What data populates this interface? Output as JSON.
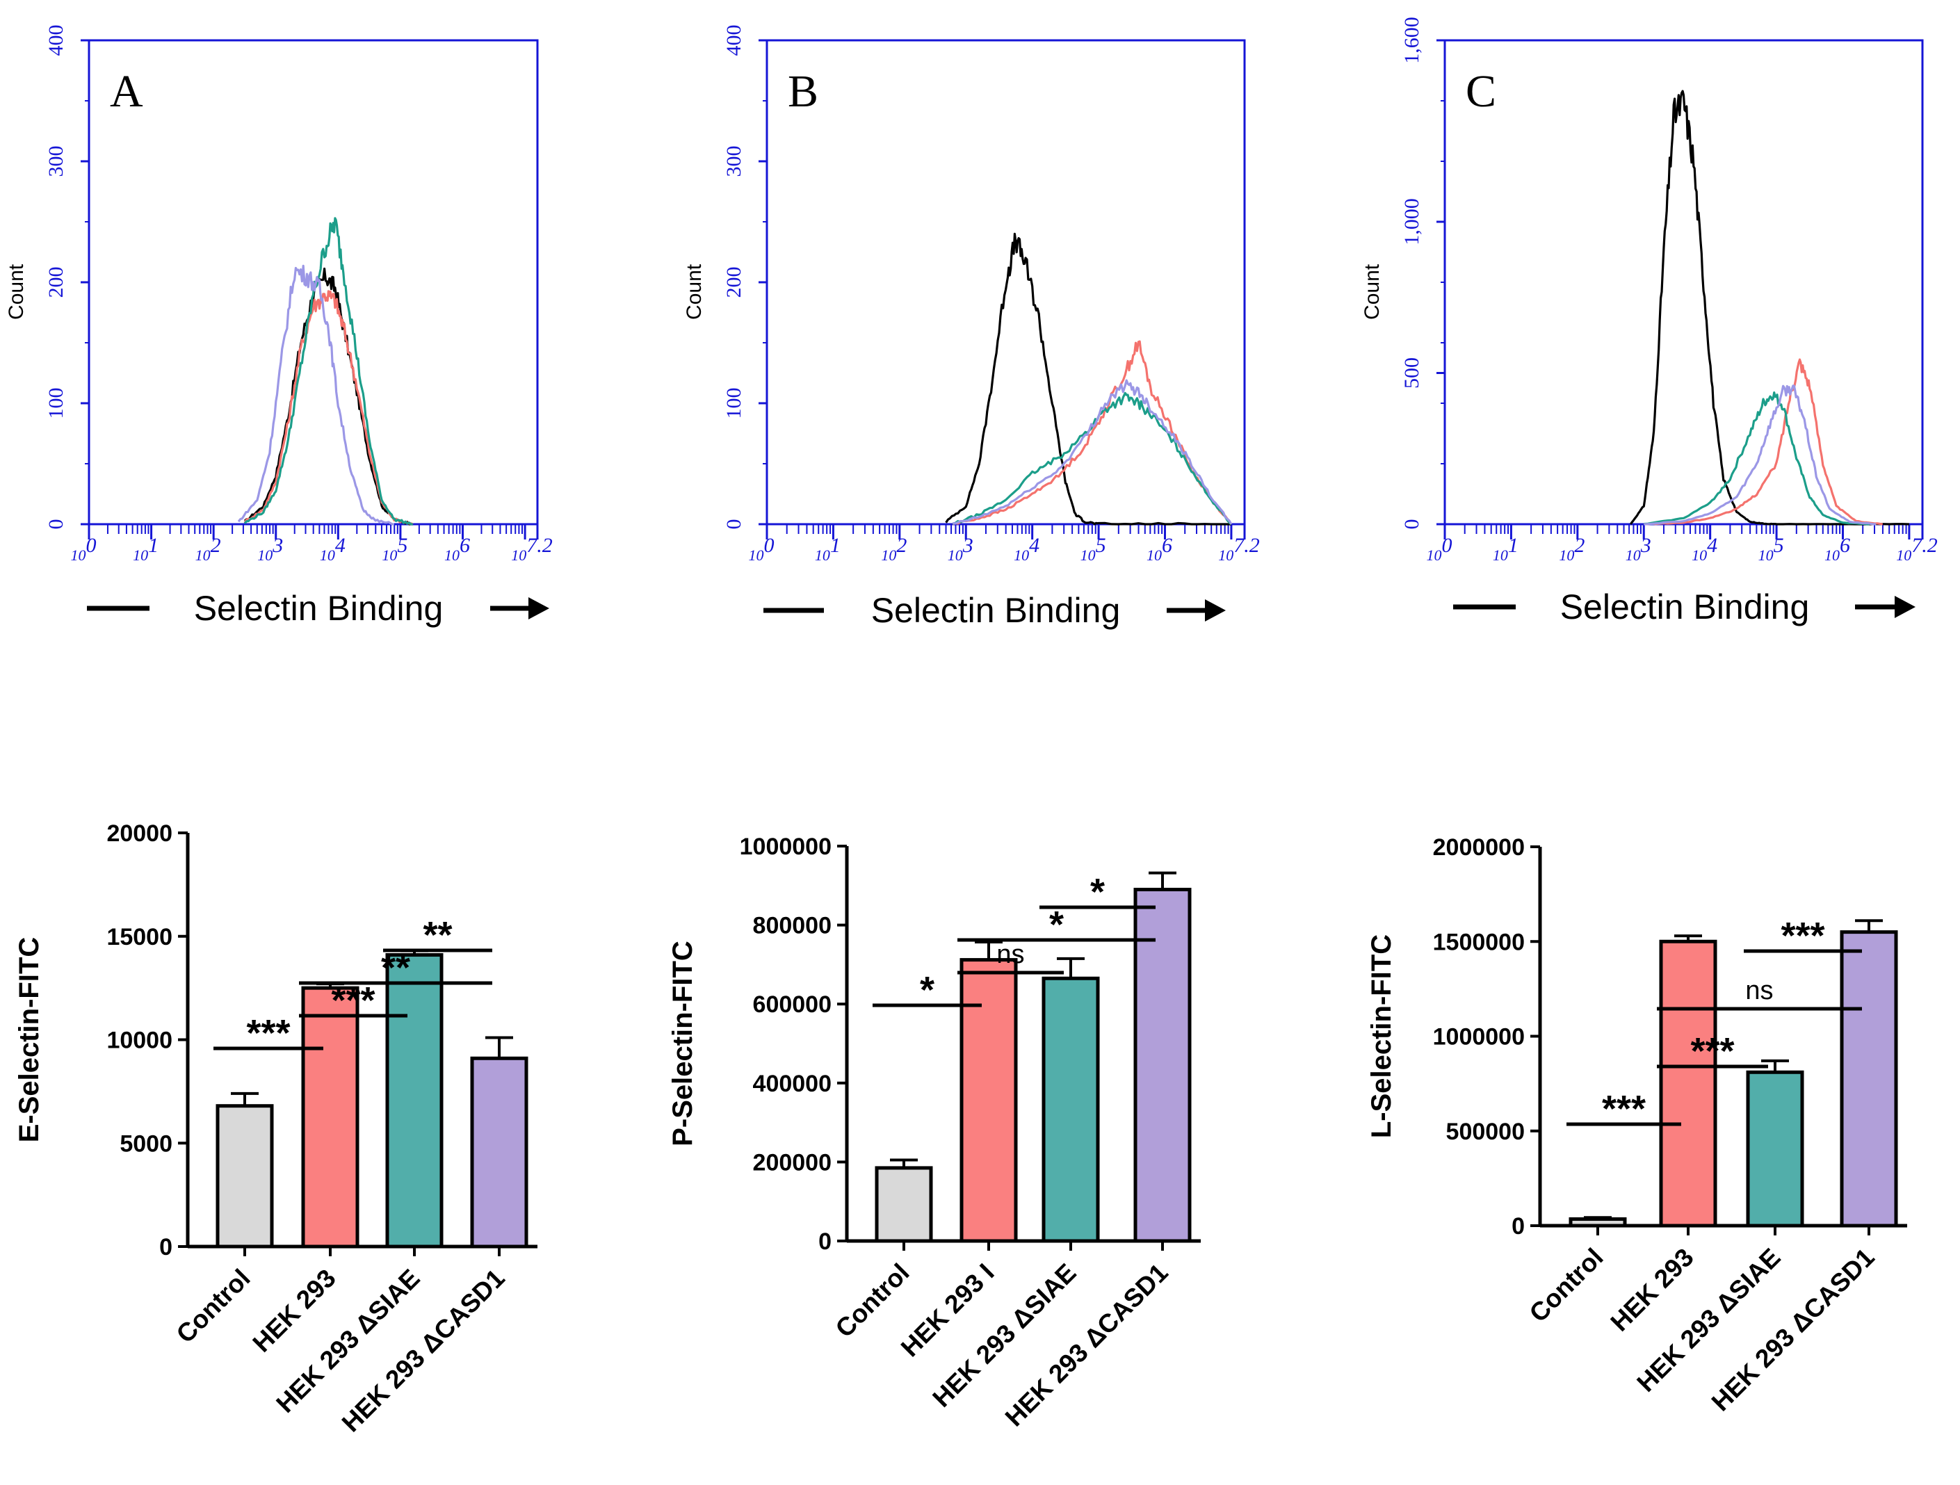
{
  "figure": {
    "colors": {
      "hist_axis": "#1515d6",
      "control": "#000000",
      "hek293": "#f4726d",
      "siae": "#1c9e8a",
      "casd1": "#9b97e6",
      "bar_control": "#d9d9d9",
      "bar_hek293": "#fa8080",
      "bar_siae": "#52aeaa",
      "bar_casd1": "#b19fd9"
    }
  },
  "chart_data": [
    {
      "type": "line",
      "id": "hist-A",
      "panel_letter": "A",
      "ylabel": "Count",
      "xlabel": "Selectin Binding",
      "xscale": "log10",
      "xlim": [
        0,
        7.2
      ],
      "ylim": [
        0,
        400
      ],
      "yticks": [
        "0",
        "100",
        "200",
        "300",
        "400"
      ],
      "xtick_labels": [
        "10",
        "10",
        "10",
        "10",
        "10",
        "10",
        "10",
        "10"
      ],
      "xtick_exponents": [
        "0",
        "1",
        "2",
        "3",
        "4",
        "5",
        "6",
        "7.2"
      ],
      "series": [
        {
          "name": "Control",
          "color_key": "control",
          "x": [
            2.5,
            2.8,
            3.0,
            3.2,
            3.4,
            3.6,
            3.8,
            3.95,
            4.1,
            4.3,
            4.5,
            4.7,
            4.9,
            5.2
          ],
          "y": [
            2,
            15,
            40,
            90,
            150,
            190,
            205,
            195,
            160,
            110,
            55,
            15,
            4,
            0
          ]
        },
        {
          "name": "HEK 293",
          "color_key": "hek293",
          "x": [
            2.5,
            2.8,
            3.0,
            3.2,
            3.4,
            3.6,
            3.8,
            3.95,
            4.1,
            4.3,
            4.5,
            4.7,
            4.9,
            5.2
          ],
          "y": [
            2,
            12,
            35,
            85,
            145,
            180,
            190,
            185,
            160,
            115,
            60,
            18,
            4,
            0
          ]
        },
        {
          "name": "HEK 293 ΔSIAE",
          "color_key": "siae",
          "x": [
            2.5,
            2.8,
            3.0,
            3.2,
            3.4,
            3.6,
            3.8,
            3.95,
            4.1,
            4.3,
            4.5,
            4.7,
            4.9,
            5.2
          ],
          "y": [
            1,
            10,
            28,
            70,
            130,
            190,
            230,
            250,
            205,
            140,
            70,
            20,
            4,
            0
          ]
        },
        {
          "name": "HEK 293 ΔCASD1",
          "color_key": "casd1",
          "x": [
            2.4,
            2.7,
            2.9,
            3.1,
            3.3,
            3.5,
            3.7,
            3.85,
            4.0,
            4.2,
            4.4,
            4.6,
            4.9
          ],
          "y": [
            2,
            20,
            60,
            140,
            210,
            205,
            195,
            160,
            100,
            45,
            12,
            3,
            0
          ]
        }
      ]
    },
    {
      "type": "line",
      "id": "hist-B",
      "panel_letter": "B",
      "ylabel": "Count",
      "xlabel": "Selectin Binding",
      "xscale": "log10",
      "xlim": [
        0,
        7.2
      ],
      "ylim": [
        0,
        400
      ],
      "yticks": [
        "0",
        "100",
        "200",
        "300",
        "400"
      ],
      "xtick_labels": [
        "10",
        "10",
        "10",
        "10",
        "10",
        "10",
        "10",
        "10"
      ],
      "xtick_exponents": [
        "0",
        "1",
        "2",
        "3",
        "4",
        "5",
        "6",
        "7.2"
      ],
      "series": [
        {
          "name": "Control",
          "color_key": "control",
          "x": [
            2.7,
            3.0,
            3.2,
            3.4,
            3.6,
            3.75,
            3.9,
            4.1,
            4.3,
            4.5,
            4.65,
            4.8,
            5.0,
            6.0,
            7.0
          ],
          "y": [
            2,
            15,
            50,
            120,
            200,
            235,
            215,
            170,
            100,
            35,
            8,
            2,
            0,
            0,
            0
          ]
        },
        {
          "name": "HEK 293",
          "color_key": "hek293",
          "x": [
            2.8,
            3.2,
            3.6,
            4.0,
            4.4,
            4.8,
            5.1,
            5.4,
            5.6,
            5.8,
            6.1,
            6.4,
            6.7,
            7.0
          ],
          "y": [
            0,
            5,
            12,
            25,
            40,
            65,
            95,
            125,
            150,
            110,
            80,
            45,
            20,
            0
          ]
        },
        {
          "name": "HEK 293 ΔSIAE",
          "color_key": "siae",
          "x": [
            2.8,
            3.2,
            3.6,
            4.0,
            4.4,
            4.8,
            5.1,
            5.4,
            5.6,
            5.8,
            6.1,
            6.4,
            6.7,
            7.0
          ],
          "y": [
            0,
            8,
            20,
            42,
            55,
            75,
            95,
            105,
            100,
            90,
            70,
            45,
            20,
            0
          ]
        },
        {
          "name": "HEK 293 ΔCASD1",
          "color_key": "casd1",
          "x": [
            2.8,
            3.2,
            3.6,
            4.0,
            4.4,
            4.8,
            5.1,
            5.4,
            5.6,
            5.8,
            6.1,
            6.4,
            6.7,
            7.0
          ],
          "y": [
            0,
            6,
            15,
            30,
            45,
            72,
            100,
            115,
            110,
            95,
            75,
            50,
            22,
            0
          ]
        }
      ]
    },
    {
      "type": "line",
      "id": "hist-C",
      "panel_letter": "C",
      "ylabel": "Count",
      "xlabel": "Selectin Binding",
      "xscale": "log10",
      "xlim": [
        0,
        7.2
      ],
      "ylim": [
        0,
        1600
      ],
      "yticks": [
        "0",
        "500",
        "1,000",
        "1,600"
      ],
      "ytick_values": [
        0,
        500,
        1000,
        1600
      ],
      "xtick_labels": [
        "10",
        "10",
        "10",
        "10",
        "10",
        "10",
        "10",
        "10"
      ],
      "xtick_exponents": [
        "0",
        "1",
        "2",
        "3",
        "4",
        "5",
        "6",
        "7.2"
      ],
      "series": [
        {
          "name": "Control",
          "color_key": "control",
          "x": [
            2.8,
            3.0,
            3.15,
            3.3,
            3.45,
            3.6,
            3.75,
            3.9,
            4.05,
            4.2,
            4.4,
            4.6,
            4.8,
            5.0,
            6.0,
            7.0
          ],
          "y": [
            0,
            60,
            300,
            900,
            1350,
            1400,
            1200,
            800,
            400,
            150,
            40,
            8,
            2,
            0,
            0,
            0
          ]
        },
        {
          "name": "HEK 293",
          "color_key": "hek293",
          "x": [
            3.0,
            3.6,
            4.0,
            4.4,
            4.7,
            5.0,
            5.2,
            5.35,
            5.5,
            5.7,
            5.9,
            6.2,
            6.6
          ],
          "y": [
            0,
            5,
            20,
            50,
            100,
            200,
            420,
            540,
            460,
            200,
            60,
            10,
            0
          ]
        },
        {
          "name": "HEK 293 ΔSIAE",
          "color_key": "siae",
          "x": [
            3.0,
            3.6,
            4.0,
            4.3,
            4.6,
            4.8,
            4.95,
            5.1,
            5.3,
            5.5,
            5.7,
            6.0,
            6.4
          ],
          "y": [
            0,
            20,
            70,
            150,
            300,
            400,
            430,
            390,
            220,
            90,
            30,
            5,
            0
          ]
        },
        {
          "name": "HEK 293 ΔCASD1",
          "color_key": "casd1",
          "x": [
            3.0,
            3.6,
            4.0,
            4.4,
            4.7,
            4.9,
            5.1,
            5.25,
            5.4,
            5.6,
            5.8,
            6.1,
            6.5
          ],
          "y": [
            0,
            10,
            35,
            90,
            200,
            330,
            440,
            450,
            360,
            160,
            50,
            8,
            0
          ]
        }
      ]
    },
    {
      "type": "bar",
      "id": "bar-E",
      "ylabel": "E-Selectin-FITC",
      "ylim": [
        0,
        20000
      ],
      "yticks": [
        "0",
        "5000",
        "10000",
        "15000",
        "20000"
      ],
      "ytick_values": [
        0,
        5000,
        10000,
        15000,
        20000
      ],
      "categories": [
        "Control",
        "HEK 293",
        "HEK 293 ΔSIAE",
        "HEK 293 ΔCASD1"
      ],
      "color_keys": [
        "bar_control",
        "bar_hek293",
        "bar_siae",
        "bar_casd1"
      ],
      "values": [
        6800,
        12500,
        14100,
        9100
      ],
      "errors": [
        600,
        200,
        200,
        1000
      ],
      "significance": [
        {
          "from": 0,
          "to": 1,
          "label": "***",
          "level": 0
        },
        {
          "from": 1,
          "to": 2,
          "label": "***",
          "level": 1
        },
        {
          "from": 1,
          "to": 3,
          "label": "**",
          "level": 2
        },
        {
          "from": 2,
          "to": 3,
          "label": "**",
          "level": 3
        }
      ]
    },
    {
      "type": "bar",
      "id": "bar-P",
      "ylabel": "P-Selectin-FITC",
      "ylim": [
        0,
        1000000
      ],
      "yticks": [
        "0",
        "200000",
        "400000",
        "600000",
        "800000",
        "1000000"
      ],
      "ytick_values": [
        0,
        200000,
        400000,
        600000,
        800000,
        1000000
      ],
      "categories": [
        "Control",
        "HEK 293 I",
        "HEK 293 ΔSIAE",
        "HEK 293 ΔCASD1"
      ],
      "color_keys": [
        "bar_control",
        "bar_hek293",
        "bar_siae",
        "bar_casd1"
      ],
      "values": [
        185000,
        712000,
        665000,
        890000
      ],
      "errors": [
        20000,
        45000,
        50000,
        42000
      ],
      "significance": [
        {
          "from": 0,
          "to": 1,
          "label": "*",
          "level": 0
        },
        {
          "from": 1,
          "to": 2,
          "label": "ns",
          "level": 1
        },
        {
          "from": 1,
          "to": 3,
          "label": "*",
          "level": 2
        },
        {
          "from": 2,
          "to": 3,
          "label": "*",
          "level": 3
        }
      ]
    },
    {
      "type": "bar",
      "id": "bar-L",
      "ylabel": "L-Selectin-FITC",
      "ylim": [
        0,
        2000000
      ],
      "yticks": [
        "0",
        "500000",
        "1000000",
        "1500000",
        "2000000"
      ],
      "ytick_values": [
        0,
        500000,
        1000000,
        1500000,
        2000000
      ],
      "categories": [
        "Control",
        "HEK 293",
        "HEK 293 ΔSIAE",
        "HEK 293 ΔCASD1"
      ],
      "color_keys": [
        "bar_control",
        "bar_hek293",
        "bar_siae",
        "bar_casd1"
      ],
      "values": [
        35000,
        1500000,
        810000,
        1550000
      ],
      "errors": [
        8000,
        30000,
        60000,
        60000
      ],
      "significance": [
        {
          "from": 0,
          "to": 1,
          "label": "***",
          "level": 0
        },
        {
          "from": 1,
          "to": 2,
          "label": "***",
          "level": 1
        },
        {
          "from": 1,
          "to": 3,
          "label": "ns",
          "level": 2
        },
        {
          "from": 2,
          "to": 3,
          "label": "***",
          "level": 3
        }
      ]
    }
  ]
}
